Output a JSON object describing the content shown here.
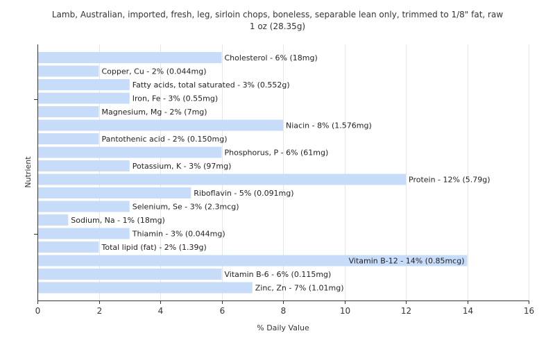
{
  "chart_data": {
    "type": "bar",
    "orientation": "horizontal",
    "title": "Lamb, Australian, imported, fresh, leg, sirloin chops, boneless, separable lean only, trimmed to 1/8\" fat, raw",
    "subtitle": "1 oz (28.35g)",
    "xlabel": "% Daily Value",
    "ylabel": "Nutrient",
    "xlim": [
      0,
      16
    ],
    "xticks": [
      0,
      2,
      4,
      6,
      8,
      10,
      12,
      14,
      16
    ],
    "grid": true,
    "bar_color": "#c6dcf8",
    "categories": [
      "Cholesterol",
      "Copper, Cu",
      "Fatty acids, total saturated",
      "Iron, Fe",
      "Magnesium, Mg",
      "Niacin",
      "Pantothenic acid",
      "Phosphorus, P",
      "Potassium, K",
      "Protein",
      "Riboflavin",
      "Selenium, Se",
      "Sodium, Na",
      "Thiamin",
      "Total lipid (fat)",
      "Vitamin B-12",
      "Vitamin B-6",
      "Zinc, Zn"
    ],
    "values": [
      6,
      2,
      3,
      3,
      2,
      8,
      2,
      6,
      3,
      12,
      5,
      3,
      1,
      3,
      2,
      14,
      6,
      7
    ],
    "labels": [
      "Cholesterol - 6% (18mg)",
      "Copper, Cu - 2% (0.044mg)",
      "Fatty acids, total saturated - 3% (0.552g)",
      "Iron, Fe - 3% (0.55mg)",
      "Magnesium, Mg - 2% (7mg)",
      "Niacin - 8% (1.576mg)",
      "Pantothenic acid - 2% (0.150mg)",
      "Phosphorus, P - 6% (61mg)",
      "Potassium, K - 3% (97mg)",
      "Protein - 12% (5.79g)",
      "Riboflavin - 5% (0.091mg)",
      "Selenium, Se - 3% (2.3mcg)",
      "Sodium, Na - 1% (18mg)",
      "Thiamin - 3% (0.044mg)",
      "Total lipid (fat) - 2% (1.39g)",
      "Vitamin B-12 - 14% (0.85mcg)",
      "Vitamin B-6 - 6% (0.115mg)",
      "Zinc, Zn - 7% (1.01mg)"
    ]
  }
}
